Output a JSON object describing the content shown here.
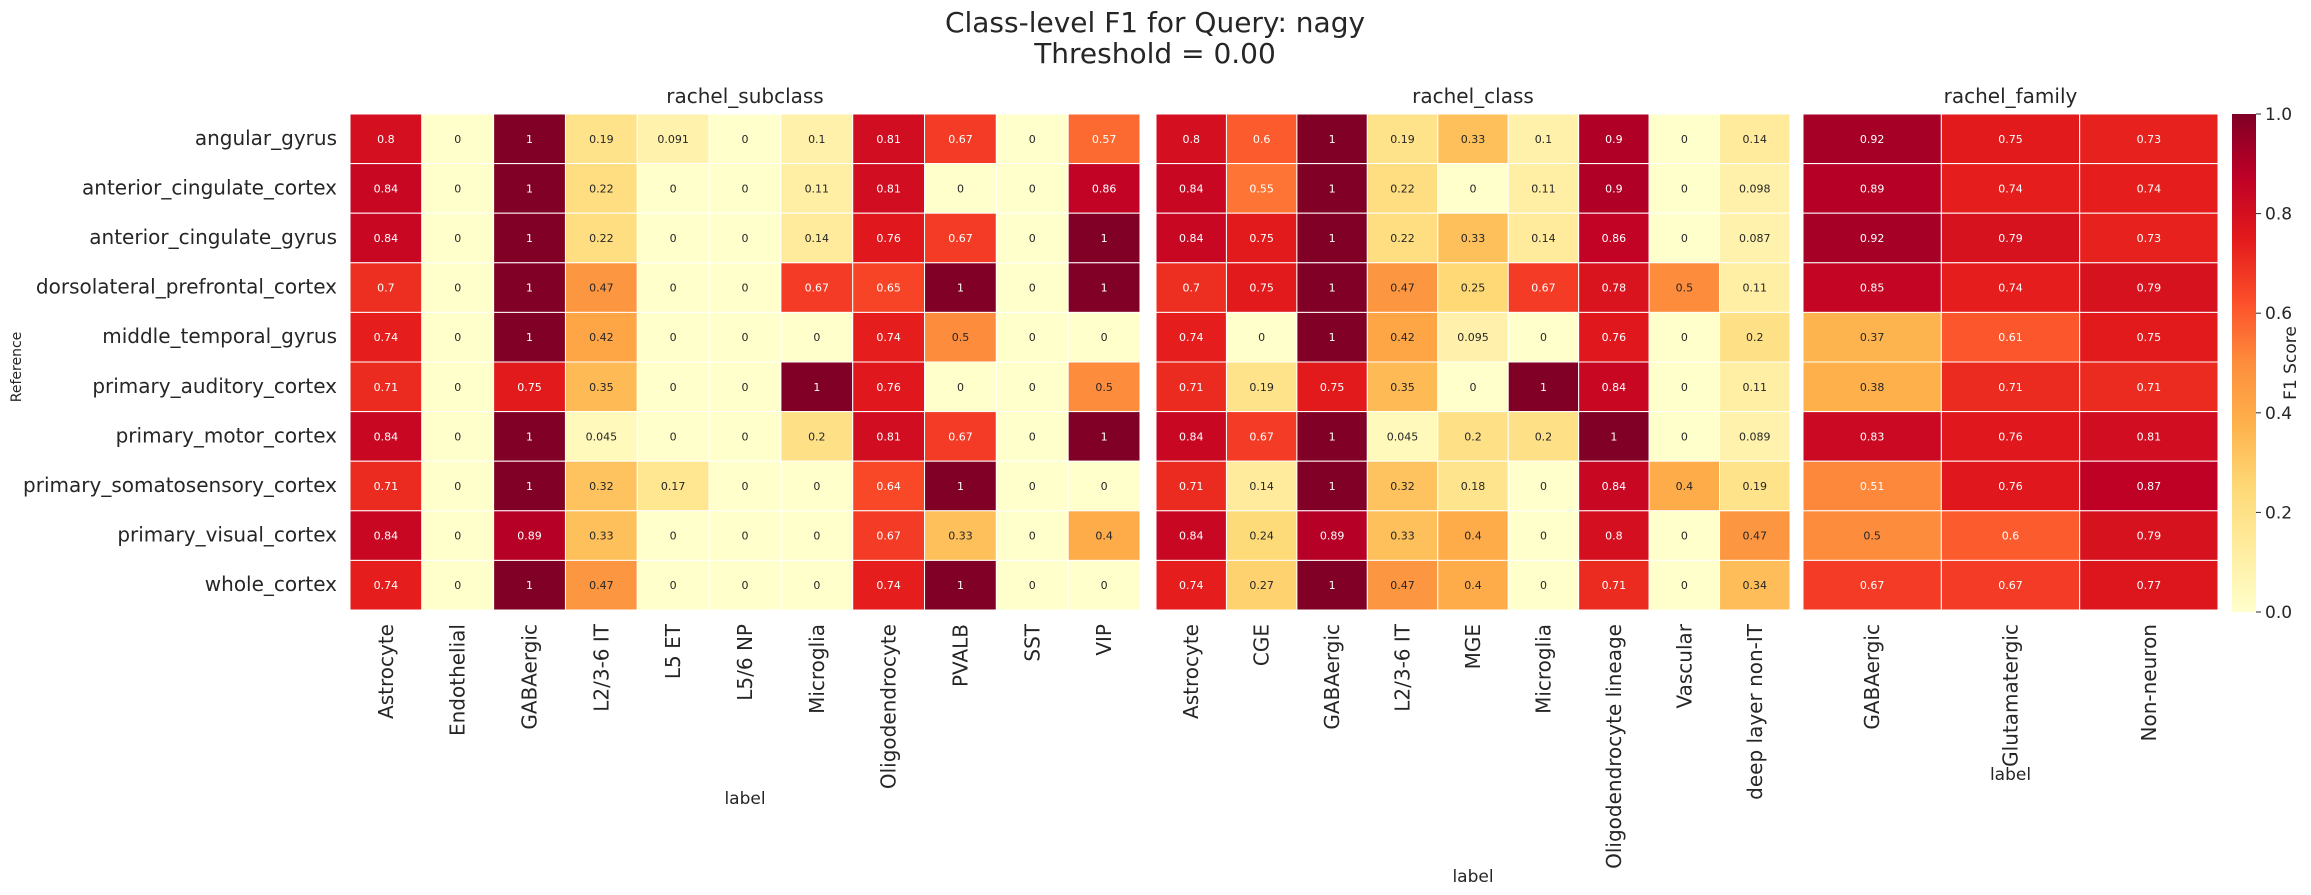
{
  "figure": {
    "title_line1": "Class-level F1 for Query: nagy",
    "title_line2": "Threshold = 0.00",
    "ylabel": "Reference",
    "colorbar_label": "F1 Score",
    "colorbar_ticks": [
      "0.0",
      "0.2",
      "0.4",
      "0.6",
      "0.8",
      "1.0"
    ],
    "colormap": [
      "#ffffcc",
      "#ffeda0",
      "#fed976",
      "#feb24c",
      "#fd8d3c",
      "#fc4e2a",
      "#e31a1c",
      "#bd0026",
      "#800026"
    ]
  },
  "chart_data": {
    "type": "heatmap",
    "title": "Class-level F1 for Query: nagy\nThreshold = 0.00",
    "ylabel": "Reference",
    "value_range": [
      0,
      1
    ],
    "rows": [
      "angular_gyrus",
      "anterior_cingulate_cortex",
      "anterior_cingulate_gyrus",
      "dorsolateral_prefrontal_cortex",
      "middle_temporal_gyrus",
      "primary_auditory_cortex",
      "primary_motor_cortex",
      "primary_somatosensory_cortex",
      "primary_visual_cortex",
      "whole_cortex"
    ],
    "panels": [
      {
        "title": "rachel_subclass",
        "xlabel": "label",
        "columns": [
          "Astrocyte",
          "Endothelial",
          "GABAergic",
          "L2/3-6 IT",
          "L5 ET",
          "L5/6 NP",
          "Microglia",
          "Oligodendrocyte",
          "PVALB",
          "SST",
          "VIP"
        ],
        "values": [
          [
            "0.8",
            "0",
            "1",
            "0.19",
            "0.091",
            "0",
            "0.1",
            "0.81",
            "0.67",
            "0",
            "0.57"
          ],
          [
            "0.84",
            "0",
            "1",
            "0.22",
            "0",
            "0",
            "0.11",
            "0.81",
            "0",
            "0",
            "0.86"
          ],
          [
            "0.84",
            "0",
            "1",
            "0.22",
            "0",
            "0",
            "0.14",
            "0.76",
            "0.67",
            "0",
            "1"
          ],
          [
            "0.7",
            "0",
            "1",
            "0.47",
            "0",
            "0",
            "0.67",
            "0.65",
            "1",
            "0",
            "1"
          ],
          [
            "0.74",
            "0",
            "1",
            "0.42",
            "0",
            "0",
            "0",
            "0.74",
            "0.5",
            "0",
            "0"
          ],
          [
            "0.71",
            "0",
            "0.75",
            "0.35",
            "0",
            "0",
            "1",
            "0.76",
            "0",
            "0",
            "0.5"
          ],
          [
            "0.84",
            "0",
            "1",
            "0.045",
            "0",
            "0",
            "0.2",
            "0.81",
            "0.67",
            "0",
            "1"
          ],
          [
            "0.71",
            "0",
            "1",
            "0.32",
            "0.17",
            "0",
            "0",
            "0.64",
            "1",
            "0",
            "0"
          ],
          [
            "0.84",
            "0",
            "0.89",
            "0.33",
            "0",
            "0",
            "0",
            "0.67",
            "0.33",
            "0",
            "0.4"
          ],
          [
            "0.74",
            "0",
            "1",
            "0.47",
            "0",
            "0",
            "0",
            "0.74",
            "1",
            "0",
            "0"
          ]
        ]
      },
      {
        "title": "rachel_class",
        "xlabel": "label",
        "columns": [
          "Astrocyte",
          "CGE",
          "GABAergic",
          "L2/3-6 IT",
          "MGE",
          "Microglia",
          "Oligodendrocyte lineage",
          "Vascular",
          "deep layer non-IT"
        ],
        "values": [
          [
            "0.8",
            "0.6",
            "1",
            "0.19",
            "0.33",
            "0.1",
            "0.9",
            "0",
            "0.14"
          ],
          [
            "0.84",
            "0.55",
            "1",
            "0.22",
            "0",
            "0.11",
            "0.9",
            "0",
            "0.098"
          ],
          [
            "0.84",
            "0.75",
            "1",
            "0.22",
            "0.33",
            "0.14",
            "0.86",
            "0",
            "0.087"
          ],
          [
            "0.7",
            "0.75",
            "1",
            "0.47",
            "0.25",
            "0.67",
            "0.78",
            "0.5",
            "0.11"
          ],
          [
            "0.74",
            "0",
            "1",
            "0.42",
            "0.095",
            "0",
            "0.76",
            "0",
            "0.2"
          ],
          [
            "0.71",
            "0.19",
            "0.75",
            "0.35",
            "0",
            "1",
            "0.84",
            "0",
            "0.11"
          ],
          [
            "0.84",
            "0.67",
            "1",
            "0.045",
            "0.2",
            "0.2",
            "1",
            "0",
            "0.089"
          ],
          [
            "0.71",
            "0.14",
            "1",
            "0.32",
            "0.18",
            "0",
            "0.84",
            "0.4",
            "0.19"
          ],
          [
            "0.84",
            "0.24",
            "0.89",
            "0.33",
            "0.4",
            "0",
            "0.8",
            "0",
            "0.47"
          ],
          [
            "0.74",
            "0.27",
            "1",
            "0.47",
            "0.4",
            "0",
            "0.71",
            "0",
            "0.34"
          ]
        ]
      },
      {
        "title": "rachel_family",
        "xlabel": "label",
        "columns": [
          "GABAergic",
          "Glutamatergic",
          "Non-neuron"
        ],
        "values": [
          [
            "0.92",
            "0.75",
            "0.73"
          ],
          [
            "0.89",
            "0.74",
            "0.74"
          ],
          [
            "0.92",
            "0.79",
            "0.73"
          ],
          [
            "0.85",
            "0.74",
            "0.79"
          ],
          [
            "0.37",
            "0.61",
            "0.75"
          ],
          [
            "0.38",
            "0.71",
            "0.71"
          ],
          [
            "0.83",
            "0.76",
            "0.81"
          ],
          [
            "0.51",
            "0.76",
            "0.87"
          ],
          [
            "0.5",
            "0.6",
            "0.79"
          ],
          [
            "0.67",
            "0.67",
            "0.77"
          ]
        ]
      }
    ]
  }
}
